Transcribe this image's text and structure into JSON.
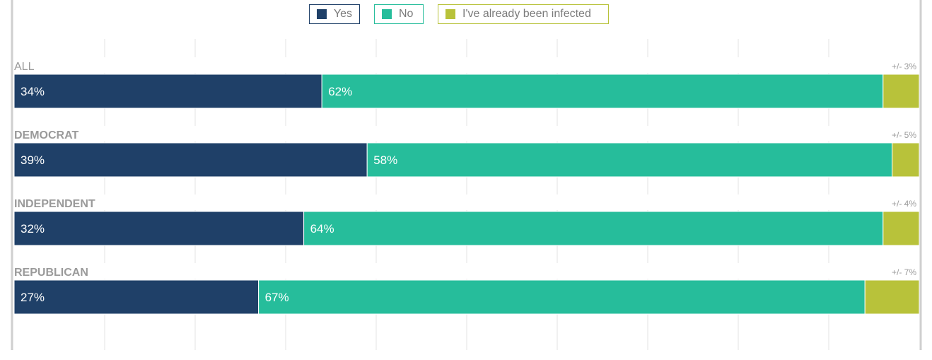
{
  "chart_data": {
    "type": "bar",
    "orientation": "horizontal",
    "stacked": true,
    "categories": [
      "ALL",
      "DEMOCRAT",
      "INDEPENDENT",
      "REPUBLICAN"
    ],
    "margins_of_error": [
      "+/- 3%",
      "+/- 5%",
      "+/- 4%",
      "+/- 7%"
    ],
    "series": [
      {
        "name": "Yes",
        "color": "#1f4068",
        "values": [
          34,
          39,
          32,
          27
        ],
        "labels": [
          "34%",
          "39%",
          "32%",
          "27%"
        ]
      },
      {
        "name": "No",
        "color": "#26bd9b",
        "values": [
          62,
          58,
          64,
          67
        ],
        "labels": [
          "62%",
          "58%",
          "64%",
          "67%"
        ]
      },
      {
        "name": "I've already been infected",
        "color": "#b8c23a",
        "values": [
          4,
          3,
          4,
          6
        ]
      }
    ],
    "xlim": [
      0,
      100
    ],
    "grid": true,
    "legend_position": "top-center"
  }
}
